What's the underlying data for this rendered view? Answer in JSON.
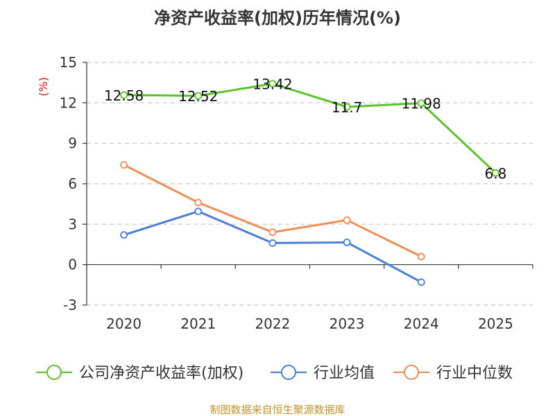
{
  "chart_data": {
    "type": "line",
    "title": "净资产收益率(加权)历年情况(%)",
    "ylabel": "(%)",
    "xlabel": "",
    "categories": [
      "2020",
      "2021",
      "2022",
      "2023",
      "2024",
      "2025"
    ],
    "ylim": [
      -3,
      15
    ],
    "yticks": [
      -3,
      0,
      3,
      6,
      9,
      12,
      15
    ],
    "grid": true,
    "legend_position": "bottom",
    "series": [
      {
        "name": "公司净资产收益率(加权)",
        "color": "#5cc22a",
        "values": [
          12.58,
          12.52,
          13.42,
          11.7,
          11.98,
          6.8
        ],
        "labels": [
          "12.58",
          "12.52",
          "13.42",
          "11.7",
          "11.98",
          "6.8"
        ]
      },
      {
        "name": "行业均值",
        "color": "#4a7fd6",
        "values": [
          2.2,
          3.95,
          1.6,
          1.65,
          -1.3,
          null
        ]
      },
      {
        "name": "行业中位数",
        "color": "#f28c55",
        "values": [
          7.4,
          4.6,
          2.4,
          3.3,
          0.6,
          null
        ]
      }
    ]
  },
  "source": "制图数据来自恒生聚源数据库"
}
